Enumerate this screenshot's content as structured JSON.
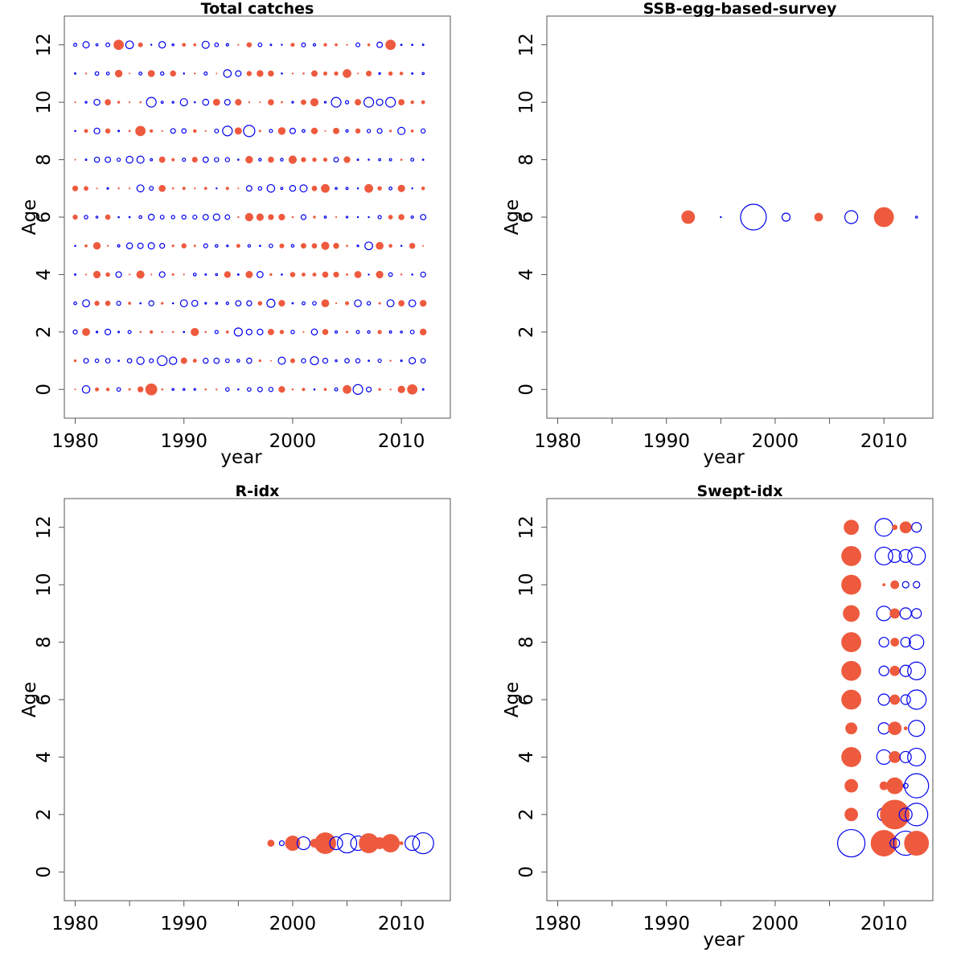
{
  "colors": {
    "positive": "#ee5a3e",
    "negative": "#0000ee",
    "axis": "#555555"
  },
  "chart_data": [
    {
      "type": "scatter",
      "title": "Total catches",
      "xlabel": "year",
      "ylabel": "Age",
      "xlim": [
        1979,
        2014.5
      ],
      "ylim": [
        -1,
        13
      ],
      "xticks": [
        1980,
        1990,
        2000,
        2010
      ],
      "yticks": [
        0,
        2,
        4,
        6,
        8,
        10,
        12
      ],
      "xminor": [],
      "size_pattern": "seeded",
      "seed": 7,
      "x_range": [
        1980,
        2012
      ],
      "y_range": [
        0,
        12
      ],
      "highlights": [
        {
          "x": 1987,
          "y": 0,
          "r": 7,
          "sign": "+"
        },
        {
          "x": 2011,
          "y": 0,
          "r": 6,
          "sign": "+"
        },
        {
          "x": 2005,
          "y": 0,
          "r": 5,
          "sign": "+"
        },
        {
          "x": 2006,
          "y": 0,
          "r": 6,
          "sign": "-"
        },
        {
          "x": 1988,
          "y": 1,
          "r": 6,
          "sign": "-"
        },
        {
          "x": 2002,
          "y": 1,
          "r": 5,
          "sign": "-"
        },
        {
          "x": 1995,
          "y": 2,
          "r": 5,
          "sign": "-"
        },
        {
          "x": 1998,
          "y": 3,
          "r": 5,
          "sign": "-"
        },
        {
          "x": 1984,
          "y": 12,
          "r": 6,
          "sign": "+"
        },
        {
          "x": 2009,
          "y": 12,
          "r": 6,
          "sign": "+"
        },
        {
          "x": 2005,
          "y": 11,
          "r": 5,
          "sign": "+"
        },
        {
          "x": 1987,
          "y": 10,
          "r": 6,
          "sign": "-"
        },
        {
          "x": 2004,
          "y": 10,
          "r": 6,
          "sign": "-"
        },
        {
          "x": 2007,
          "y": 10,
          "r": 6,
          "sign": "-"
        },
        {
          "x": 2009,
          "y": 10,
          "r": 6,
          "sign": "-"
        },
        {
          "x": 1986,
          "y": 9,
          "r": 6,
          "sign": "+"
        },
        {
          "x": 1994,
          "y": 9,
          "r": 6,
          "sign": "-"
        },
        {
          "x": 1996,
          "y": 9,
          "r": 7,
          "sign": "-"
        },
        {
          "x": 2003,
          "y": 7,
          "r": 5,
          "sign": "+"
        },
        {
          "x": 2007,
          "y": 7,
          "r": 5,
          "sign": "+"
        }
      ]
    },
    {
      "type": "scatter",
      "title": "SSB-egg-based-survey",
      "xlabel": "year",
      "ylabel": "Age",
      "xlim": [
        1979,
        2014.5
      ],
      "ylim": [
        -1,
        13
      ],
      "xticks": [
        1980,
        1990,
        2000,
        2010
      ],
      "yticks": [
        0,
        2,
        4,
        6,
        8,
        10,
        12
      ],
      "xminor": [
        1985,
        1995,
        2005
      ],
      "points": [
        {
          "x": 1992,
          "y": 6,
          "r": 8,
          "sign": "+"
        },
        {
          "x": 1995,
          "y": 6,
          "r": 0.6,
          "sign": "-"
        },
        {
          "x": 1998,
          "y": 6,
          "r": 16,
          "sign": "-"
        },
        {
          "x": 2001,
          "y": 6,
          "r": 5,
          "sign": "-"
        },
        {
          "x": 2004,
          "y": 6,
          "r": 5,
          "sign": "+"
        },
        {
          "x": 2007,
          "y": 6,
          "r": 8,
          "sign": "-"
        },
        {
          "x": 2010,
          "y": 6,
          "r": 12,
          "sign": "+"
        },
        {
          "x": 2013,
          "y": 6,
          "r": 1.2,
          "sign": "-"
        }
      ]
    },
    {
      "type": "scatter",
      "title": "R-idx",
      "xlabel": "",
      "ylabel": "Age",
      "xlim": [
        1979,
        2014.5
      ],
      "ylim": [
        -1,
        13
      ],
      "xticks": [
        1980,
        1990,
        2000,
        2010
      ],
      "yticks": [
        0,
        2,
        4,
        6,
        8,
        10,
        12
      ],
      "xminor": [
        1985,
        1995,
        2005
      ],
      "points": [
        {
          "x": 1998,
          "y": 1,
          "r": 4,
          "sign": "+"
        },
        {
          "x": 1999,
          "y": 1,
          "r": 3,
          "sign": "-"
        },
        {
          "x": 2000,
          "y": 1,
          "r": 9,
          "sign": "+"
        },
        {
          "x": 2001,
          "y": 1,
          "r": 8,
          "sign": "-"
        },
        {
          "x": 2002,
          "y": 1,
          "r": 5,
          "sign": "+"
        },
        {
          "x": 2003,
          "y": 1,
          "r": 13,
          "sign": "+"
        },
        {
          "x": 2004,
          "y": 1,
          "r": 8,
          "sign": "-"
        },
        {
          "x": 2005,
          "y": 1,
          "r": 12,
          "sign": "-"
        },
        {
          "x": 2006,
          "y": 1,
          "r": 9,
          "sign": "-"
        },
        {
          "x": 2007,
          "y": 1,
          "r": 12,
          "sign": "+"
        },
        {
          "x": 2008,
          "y": 1,
          "r": 7,
          "sign": "+"
        },
        {
          "x": 2009,
          "y": 1,
          "r": 11,
          "sign": "+"
        },
        {
          "x": 2010,
          "y": 1,
          "r": 2,
          "sign": "+"
        },
        {
          "x": 2011,
          "y": 1,
          "r": 9,
          "sign": "-"
        },
        {
          "x": 2012,
          "y": 1,
          "r": 13,
          "sign": "-"
        }
      ]
    },
    {
      "type": "scatter",
      "title": "Swept-idx",
      "xlabel": "year",
      "ylabel": "Age",
      "xlim": [
        1979,
        2014.5
      ],
      "ylim": [
        -1,
        13
      ],
      "xticks": [
        1980,
        1990,
        2000,
        2010
      ],
      "yticks": [
        0,
        2,
        4,
        6,
        8,
        10,
        12
      ],
      "xminor": [
        1985,
        1995,
        2005
      ],
      "points": [
        {
          "x": 2007,
          "y": 1,
          "r": 17,
          "sign": "-"
        },
        {
          "x": 2010,
          "y": 1,
          "r": 16,
          "sign": "+"
        },
        {
          "x": 2011,
          "y": 1,
          "r": 6,
          "sign": "-"
        },
        {
          "x": 2012,
          "y": 1,
          "r": 15,
          "sign": "-"
        },
        {
          "x": 2013,
          "y": 1,
          "r": 15,
          "sign": "+"
        },
        {
          "x": 2007,
          "y": 2,
          "r": 8,
          "sign": "+"
        },
        {
          "x": 2010,
          "y": 2,
          "r": 8,
          "sign": "-"
        },
        {
          "x": 2011,
          "y": 2,
          "r": 18,
          "sign": "+"
        },
        {
          "x": 2012,
          "y": 2,
          "r": 8,
          "sign": "-"
        },
        {
          "x": 2013,
          "y": 2,
          "r": 14,
          "sign": "-"
        },
        {
          "x": 2007,
          "y": 3,
          "r": 8,
          "sign": "+"
        },
        {
          "x": 2010,
          "y": 3,
          "r": 5,
          "sign": "+"
        },
        {
          "x": 2011,
          "y": 3,
          "r": 10,
          "sign": "+"
        },
        {
          "x": 2012,
          "y": 3,
          "r": 3,
          "sign": "-"
        },
        {
          "x": 2013,
          "y": 3,
          "r": 15,
          "sign": "-"
        },
        {
          "x": 2007,
          "y": 4,
          "r": 12,
          "sign": "+"
        },
        {
          "x": 2010,
          "y": 4,
          "r": 9,
          "sign": "-"
        },
        {
          "x": 2011,
          "y": 4,
          "r": 7,
          "sign": "+"
        },
        {
          "x": 2012,
          "y": 4,
          "r": 7,
          "sign": "-"
        },
        {
          "x": 2013,
          "y": 4,
          "r": 11,
          "sign": "-"
        },
        {
          "x": 2007,
          "y": 5,
          "r": 7,
          "sign": "+"
        },
        {
          "x": 2010,
          "y": 5,
          "r": 7,
          "sign": "-"
        },
        {
          "x": 2011,
          "y": 5,
          "r": 8,
          "sign": "+"
        },
        {
          "x": 2012,
          "y": 5,
          "r": 2,
          "sign": "+"
        },
        {
          "x": 2013,
          "y": 5,
          "r": 10,
          "sign": "-"
        },
        {
          "x": 2007,
          "y": 6,
          "r": 12,
          "sign": "+"
        },
        {
          "x": 2010,
          "y": 6,
          "r": 7,
          "sign": "-"
        },
        {
          "x": 2011,
          "y": 6,
          "r": 6,
          "sign": "+"
        },
        {
          "x": 2012,
          "y": 6,
          "r": 6,
          "sign": "-"
        },
        {
          "x": 2013,
          "y": 6,
          "r": 12,
          "sign": "-"
        },
        {
          "x": 2007,
          "y": 7,
          "r": 12,
          "sign": "+"
        },
        {
          "x": 2010,
          "y": 7,
          "r": 6,
          "sign": "-"
        },
        {
          "x": 2011,
          "y": 7,
          "r": 6,
          "sign": "+"
        },
        {
          "x": 2012,
          "y": 7,
          "r": 7,
          "sign": "-"
        },
        {
          "x": 2013,
          "y": 7,
          "r": 11,
          "sign": "-"
        },
        {
          "x": 2007,
          "y": 8,
          "r": 12,
          "sign": "+"
        },
        {
          "x": 2010,
          "y": 8,
          "r": 6,
          "sign": "-"
        },
        {
          "x": 2011,
          "y": 8,
          "r": 5,
          "sign": "+"
        },
        {
          "x": 2012,
          "y": 8,
          "r": 6,
          "sign": "-"
        },
        {
          "x": 2013,
          "y": 8,
          "r": 9,
          "sign": "-"
        },
        {
          "x": 2007,
          "y": 9,
          "r": 10,
          "sign": "+"
        },
        {
          "x": 2010,
          "y": 9,
          "r": 9,
          "sign": "-"
        },
        {
          "x": 2011,
          "y": 9,
          "r": 6,
          "sign": "+"
        },
        {
          "x": 2012,
          "y": 9,
          "r": 7,
          "sign": "-"
        },
        {
          "x": 2013,
          "y": 9,
          "r": 6,
          "sign": "-"
        },
        {
          "x": 2007,
          "y": 10,
          "r": 12,
          "sign": "+"
        },
        {
          "x": 2010,
          "y": 10,
          "r": 1.5,
          "sign": "+"
        },
        {
          "x": 2011,
          "y": 10,
          "r": 5,
          "sign": "+"
        },
        {
          "x": 2012,
          "y": 10,
          "r": 4,
          "sign": "-"
        },
        {
          "x": 2013,
          "y": 10,
          "r": 4,
          "sign": "-"
        },
        {
          "x": 2007,
          "y": 11,
          "r": 12,
          "sign": "+"
        },
        {
          "x": 2010,
          "y": 11,
          "r": 11,
          "sign": "-"
        },
        {
          "x": 2011,
          "y": 11,
          "r": 8,
          "sign": "-"
        },
        {
          "x": 2012,
          "y": 11,
          "r": 8,
          "sign": "-"
        },
        {
          "x": 2013,
          "y": 11,
          "r": 11,
          "sign": "-"
        },
        {
          "x": 2007,
          "y": 12,
          "r": 9,
          "sign": "+"
        },
        {
          "x": 2010,
          "y": 12,
          "r": 11,
          "sign": "-"
        },
        {
          "x": 2011,
          "y": 12,
          "r": 3,
          "sign": "+"
        },
        {
          "x": 2012,
          "y": 12,
          "r": 7,
          "sign": "+"
        },
        {
          "x": 2013,
          "y": 12,
          "r": 6,
          "sign": "-"
        }
      ]
    }
  ]
}
